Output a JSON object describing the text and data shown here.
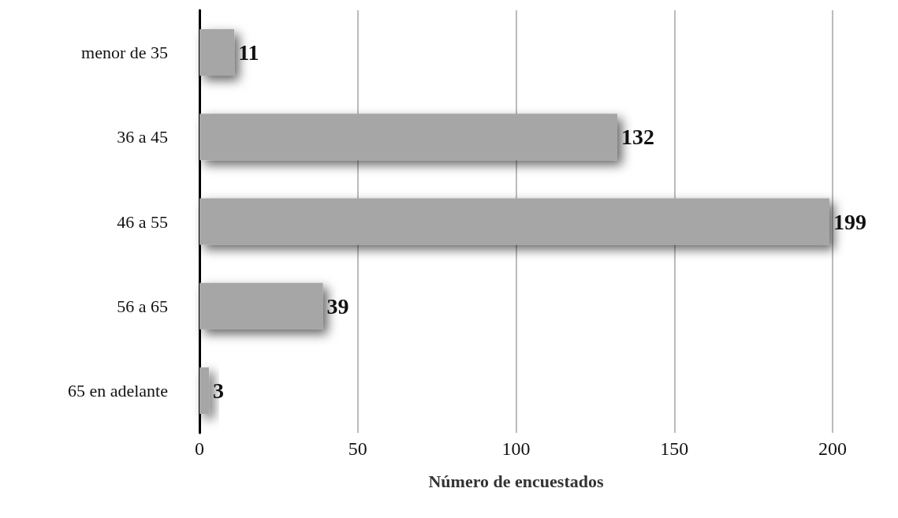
{
  "chart_data": {
    "type": "bar",
    "orientation": "horizontal",
    "xlabel": "Número de encuestados",
    "categories": [
      "menor de 35",
      "36 a 45",
      "46 a 55",
      "56 a 65",
      "65 en adelante"
    ],
    "values": [
      11,
      132,
      199,
      39,
      3
    ],
    "color": "#a6a6a6",
    "xlim": [
      0,
      200
    ],
    "xticks": [
      0,
      50,
      100,
      150,
      200
    ],
    "grid": "x",
    "data_labels": true
  }
}
